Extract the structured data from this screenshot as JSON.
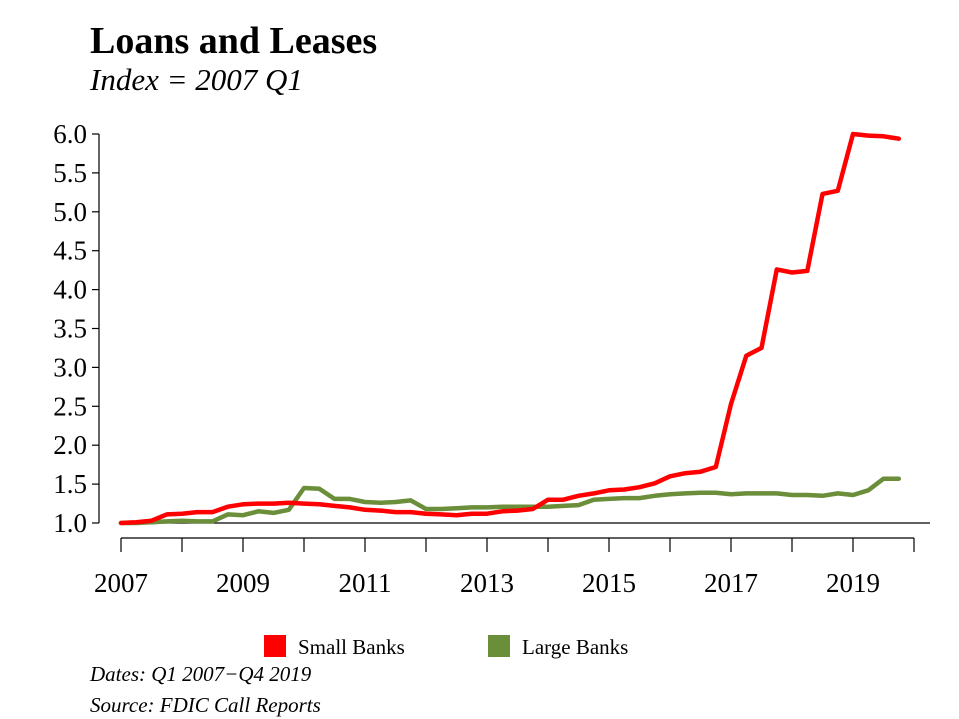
{
  "chart_data": {
    "type": "line",
    "title": "Loans and Leases",
    "subtitle": "Index = 2007 Q1",
    "xlabel": "",
    "ylabel": "",
    "x_tick_labels": [
      "2007",
      "2009",
      "2011",
      "2013",
      "2015",
      "2017",
      "2019"
    ],
    "x_ticks": [
      2007,
      2008,
      2009,
      2010,
      2011,
      2012,
      2013,
      2014,
      2015,
      2016,
      2017,
      2018,
      2019,
      2020
    ],
    "xlim": [
      2007,
      2020
    ],
    "y_ticks": [
      "1.0",
      "1.5",
      "2.0",
      "2.5",
      "3.0",
      "3.5",
      "4.0",
      "4.5",
      "5.0",
      "5.5",
      "6.0"
    ],
    "ylim": [
      1.0,
      6.0
    ],
    "grid": false,
    "legend_position": "bottom",
    "x_start_quarter": "2007 Q1",
    "series": [
      {
        "name": "Small Banks",
        "color": "#ff0000",
        "values": [
          1.0,
          1.01,
          1.03,
          1.11,
          1.12,
          1.14,
          1.14,
          1.21,
          1.24,
          1.25,
          1.25,
          1.26,
          1.25,
          1.24,
          1.22,
          1.2,
          1.17,
          1.16,
          1.14,
          1.14,
          1.12,
          1.11,
          1.1,
          1.12,
          1.12,
          1.15,
          1.16,
          1.18,
          1.3,
          1.3,
          1.35,
          1.38,
          1.42,
          1.43,
          1.46,
          1.51,
          1.6,
          1.64,
          1.66,
          1.72,
          2.53,
          3.15,
          3.25,
          4.26,
          4.22,
          4.24,
          5.23,
          5.27,
          6.0,
          5.98,
          5.97,
          5.94
        ]
      },
      {
        "name": "Large Banks",
        "color": "#6b8e3a",
        "values": [
          1.0,
          1.0,
          1.01,
          1.02,
          1.03,
          1.02,
          1.02,
          1.11,
          1.1,
          1.15,
          1.13,
          1.17,
          1.45,
          1.44,
          1.31,
          1.31,
          1.27,
          1.26,
          1.27,
          1.29,
          1.18,
          1.18,
          1.19,
          1.2,
          1.2,
          1.21,
          1.21,
          1.21,
          1.21,
          1.22,
          1.23,
          1.3,
          1.31,
          1.32,
          1.32,
          1.35,
          1.37,
          1.38,
          1.39,
          1.39,
          1.37,
          1.38,
          1.38,
          1.38,
          1.36,
          1.36,
          1.35,
          1.38,
          1.36,
          1.42,
          1.57,
          1.57
        ]
      }
    ]
  },
  "notes": {
    "dates": "Dates: Q1 2007−Q4 2019",
    "source": "Source: FDIC Call Reports"
  }
}
